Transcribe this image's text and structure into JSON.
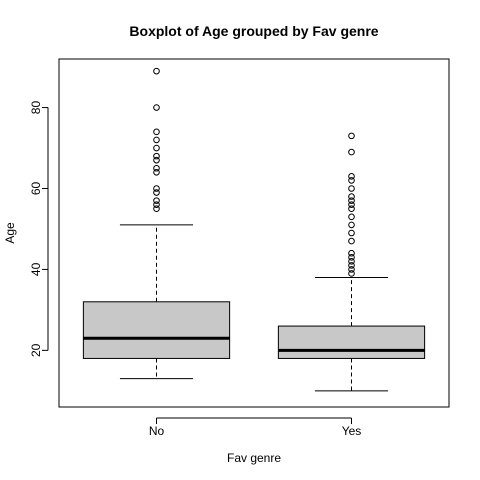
{
  "chart_data": {
    "type": "boxplot",
    "title": "Boxplot of Age grouped by Fav genre",
    "xlabel": "Fav genre",
    "ylabel": "Age",
    "categories": [
      "No",
      "Yes"
    ],
    "ylim": [
      6,
      92
    ],
    "yticks": [
      20,
      40,
      60,
      80
    ],
    "grid": false,
    "colors": {
      "box_fill": "#c8c8c8",
      "stroke": "#000000",
      "background": "#ffffff"
    },
    "boxes": [
      {
        "category": "No",
        "whisker_low": 13,
        "q1": 18,
        "median": 23,
        "q3": 32,
        "whisker_high": 51,
        "outliers": [
          55,
          56,
          57,
          59,
          60,
          64,
          65,
          67,
          68,
          70,
          72,
          74,
          80,
          89
        ]
      },
      {
        "category": "Yes",
        "whisker_low": 10,
        "q1": 18,
        "median": 20,
        "q3": 26,
        "whisker_high": 38,
        "outliers": [
          39,
          40,
          41,
          42,
          43,
          44,
          47,
          49,
          51,
          53,
          55,
          56,
          57,
          58,
          60,
          62,
          63,
          69,
          73
        ]
      }
    ]
  }
}
